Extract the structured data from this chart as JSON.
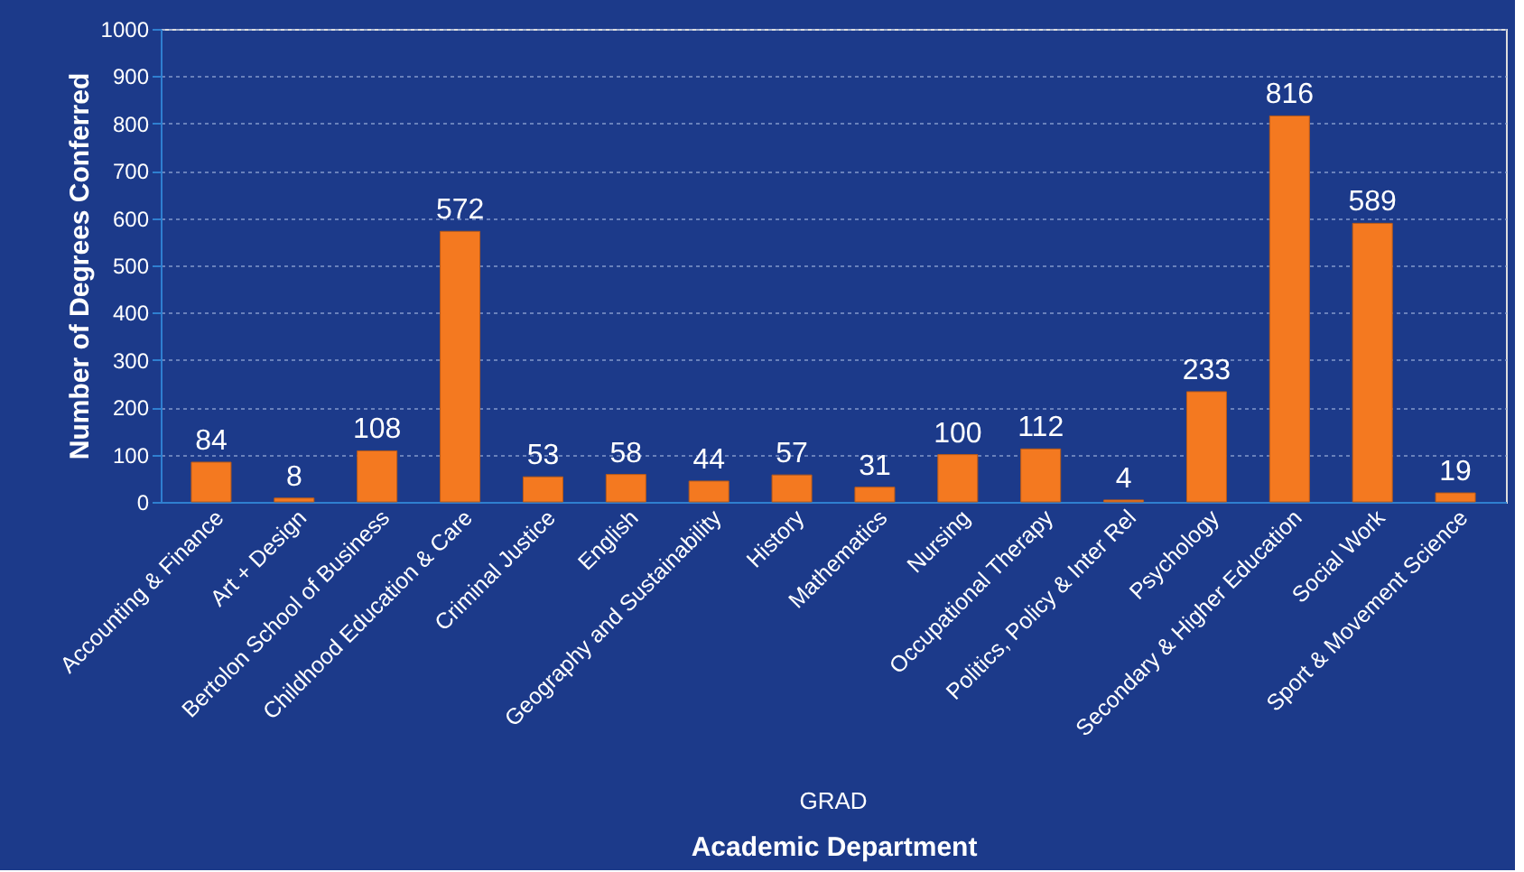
{
  "chart_data": {
    "type": "bar",
    "xlabel": "Academic Department",
    "ylabel": "Number of  Degrees Conferred",
    "categories": [
      "Accounting & Finance",
      "Art + Design",
      "Bertolon School of Business",
      "Childhood Education & Care",
      "Criminal Justice",
      "English",
      "Geography and Sustainability",
      "History",
      "Mathematics",
      "Nursing",
      "Occupational Therapy",
      "Politics, Policy & Inter Rel",
      "Psychology",
      "Secondary & Higher Education",
      "Social Work",
      "Sport & Movement Science"
    ],
    "values": [
      84,
      8,
      108,
      572,
      53,
      58,
      44,
      57,
      31,
      100,
      112,
      4,
      233,
      816,
      589,
      19
    ],
    "color": "#f47920",
    "ylim": [
      0,
      1000
    ],
    "yticks": [
      0,
      100,
      200,
      300,
      400,
      500,
      600,
      700,
      800,
      900,
      1000
    ],
    "grid": "y",
    "data_labels": true,
    "annotations": [
      "GRAD"
    ]
  }
}
